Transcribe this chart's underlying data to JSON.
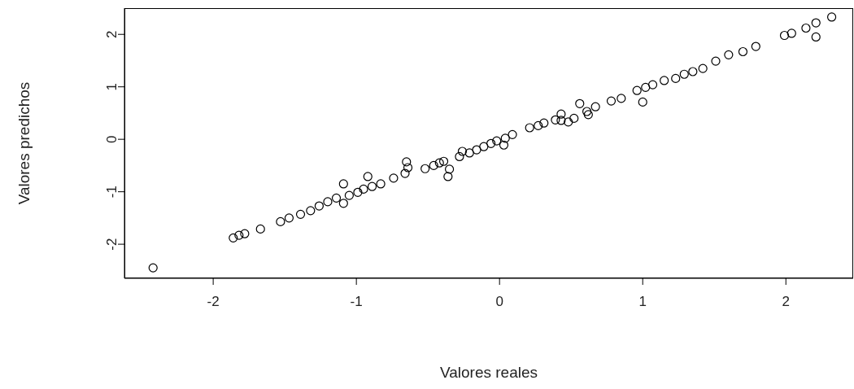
{
  "chart_data": {
    "type": "scatter",
    "xlabel": "Valores reales",
    "ylabel": "Valores predichos",
    "xlim": [
      -2.62,
      2.47
    ],
    "ylim": [
      -2.65,
      2.5
    ],
    "xticks": [
      -2,
      -1,
      0,
      1,
      2
    ],
    "yticks": [
      -2,
      -1,
      0,
      1,
      2
    ],
    "grid": false,
    "legend": false,
    "marker": "circle",
    "series": [
      {
        "color": "#000000",
        "x": [
          -2.42,
          -1.86,
          -1.82,
          -1.78,
          -1.67,
          -1.53,
          -1.47,
          -1.39,
          -1.32,
          -1.26,
          -1.2,
          -1.14,
          -1.09,
          -1.09,
          -1.05,
          -0.99,
          -0.95,
          -0.92,
          -0.89,
          -0.83,
          -0.74,
          -0.66,
          -0.65,
          -0.64,
          -0.52,
          -0.46,
          -0.42,
          -0.39,
          -0.35,
          -0.36,
          -0.28,
          -0.26,
          -0.21,
          -0.16,
          -0.11,
          -0.06,
          -0.02,
          0.04,
          0.03,
          0.09,
          0.21,
          0.27,
          0.31,
          0.39,
          0.43,
          0.43,
          0.48,
          0.52,
          0.56,
          0.61,
          0.62,
          0.67,
          0.78,
          0.85,
          0.96,
          1.02,
          1.0,
          1.07,
          1.15,
          1.23,
          1.29,
          1.35,
          1.42,
          1.51,
          1.6,
          1.7,
          1.79,
          1.99,
          2.04,
          2.14,
          2.21,
          2.21,
          2.32
        ],
        "values": [
          -2.45,
          -1.88,
          -1.83,
          -1.8,
          -1.71,
          -1.57,
          -1.5,
          -1.43,
          -1.36,
          -1.27,
          -1.19,
          -1.12,
          -0.85,
          -1.22,
          -1.07,
          -1.01,
          -0.95,
          -0.71,
          -0.9,
          -0.85,
          -0.74,
          -0.65,
          -0.43,
          -0.54,
          -0.56,
          -0.5,
          -0.45,
          -0.42,
          -0.57,
          -0.71,
          -0.33,
          -0.23,
          -0.26,
          -0.2,
          -0.14,
          -0.08,
          -0.03,
          0.02,
          -0.11,
          0.09,
          0.22,
          0.26,
          0.31,
          0.37,
          0.48,
          0.36,
          0.33,
          0.4,
          0.68,
          0.53,
          0.47,
          0.62,
          0.73,
          0.78,
          0.93,
          0.99,
          0.71,
          1.04,
          1.12,
          1.16,
          1.24,
          1.29,
          1.35,
          1.49,
          1.61,
          1.67,
          1.77,
          1.98,
          2.02,
          2.12,
          2.22,
          1.95,
          2.33
        ]
      }
    ]
  }
}
